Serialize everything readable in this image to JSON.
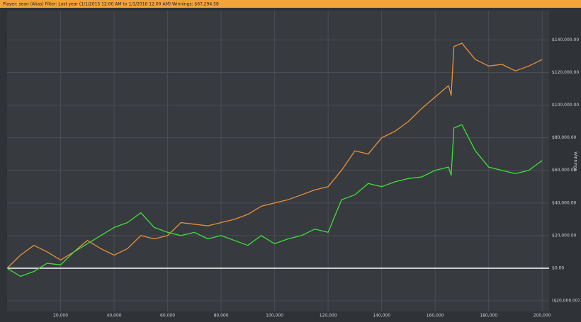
{
  "chart_data": {
    "type": "line",
    "title": "Player: sean (Alias) Filter: Last year (1/1/2015 12:00 AM to 1/1/2016 12:00 AM) Winnings: $67,294.58",
    "y_label": "Winnings",
    "x": [
      0,
      5000,
      10000,
      15000,
      20000,
      25000,
      30000,
      35000,
      40000,
      45000,
      50000,
      55000,
      60000,
      65000,
      70000,
      75000,
      80000,
      85000,
      90000,
      95000,
      100000,
      105000,
      110000,
      115000,
      120000,
      125000,
      130000,
      135000,
      140000,
      145000,
      150000,
      155000,
      160000,
      165000,
      166000,
      167000,
      170000,
      175000,
      180000,
      185000,
      190000,
      195000,
      200000
    ],
    "series": [
      {
        "color": "#e8913a",
        "values": [
          0,
          8000,
          14000,
          10000,
          5000,
          10000,
          17000,
          12000,
          8000,
          12000,
          20000,
          18000,
          20000,
          28000,
          27000,
          26000,
          28000,
          30000,
          33000,
          38000,
          40000,
          42000,
          45000,
          48000,
          50000,
          60000,
          72000,
          70000,
          80000,
          84000,
          90000,
          98000,
          105000,
          112000,
          106000,
          136000,
          138000,
          128000,
          124000,
          125000,
          121000,
          124000,
          128000
        ]
      },
      {
        "color": "#3ee03a",
        "values": [
          0,
          -5000,
          -2000,
          3000,
          2000,
          10000,
          15000,
          20000,
          25000,
          28000,
          34000,
          25000,
          22000,
          20000,
          22000,
          18000,
          20000,
          17000,
          14000,
          20000,
          15000,
          18000,
          20000,
          24000,
          22000,
          42000,
          45000,
          52000,
          50000,
          53000,
          55000,
          56000,
          60000,
          62000,
          57000,
          86000,
          88000,
          72000,
          62000,
          60000,
          58000,
          60000,
          66000
        ]
      }
    ],
    "xlim": [
      0,
      202600
    ],
    "xticks": [
      {
        "value": 20000,
        "label": "20,000"
      },
      {
        "value": 40000,
        "label": "40,000"
      },
      {
        "value": 60000,
        "label": "60,000"
      },
      {
        "value": 80000,
        "label": "80,000"
      },
      {
        "value": 100000,
        "label": "100,000"
      },
      {
        "value": 120000,
        "label": "120,000"
      },
      {
        "value": 140000,
        "label": "140,000"
      },
      {
        "value": 160000,
        "label": "160,000"
      },
      {
        "value": 180000,
        "label": "180,000"
      },
      {
        "value": 200000,
        "label": "200,000"
      }
    ],
    "ylim": [
      -26500,
      158000
    ],
    "yticks": [
      {
        "value": -20000,
        "label": "($20,000.00)"
      },
      {
        "value": 0,
        "label": "$0.00"
      },
      {
        "value": 20000,
        "label": "$20,000.00"
      },
      {
        "value": 40000,
        "label": "$40,000.00"
      },
      {
        "value": 60000,
        "label": "$60,000.00"
      },
      {
        "value": 80000,
        "label": "$80,000.00"
      },
      {
        "value": 100000,
        "label": "$100,000.00"
      },
      {
        "value": 120000,
        "label": "$120,000.00"
      },
      {
        "value": 140000,
        "label": "$140,000.00"
      }
    ],
    "grid": true,
    "zero_line_color": "#ffffff"
  }
}
